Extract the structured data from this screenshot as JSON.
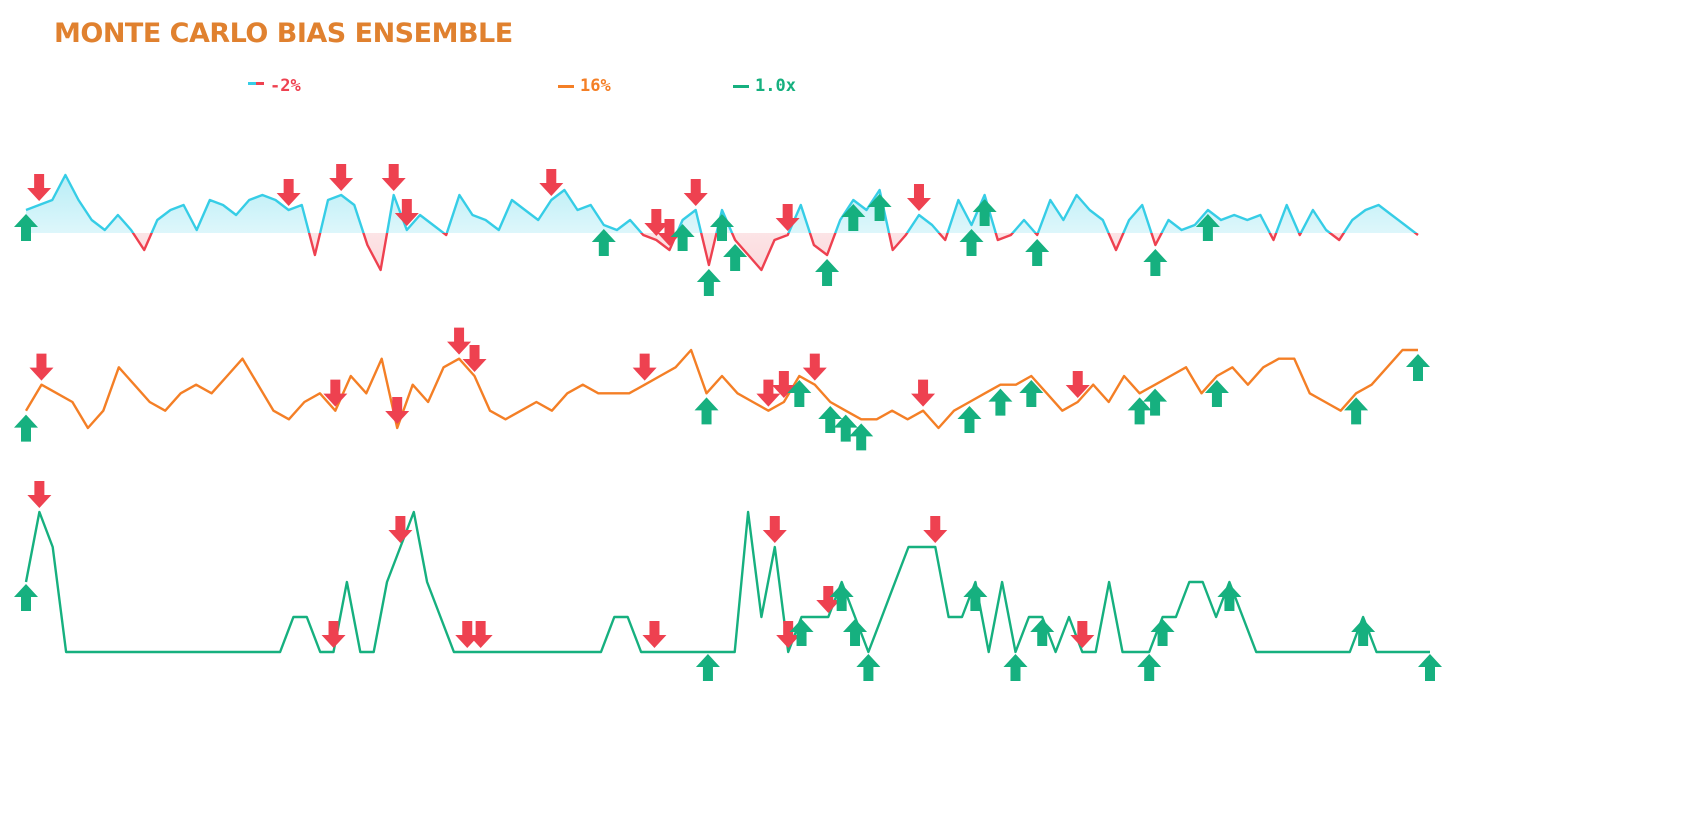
{
  "title": "MONTE CARLO BIAS ENSEMBLE",
  "legend": [
    {
      "label": "-2%",
      "color": "#ee4150",
      "color2": "#36cde6"
    },
    {
      "label": "16%",
      "color": "#f47f26"
    },
    {
      "label": "1.0x",
      "color": "#16b07f"
    }
  ],
  "colors": {
    "pos": "#36cde6",
    "neg": "#ee4150",
    "orange": "#f47f26",
    "green": "#16b07f",
    "red_marker": "#ee4150",
    "green_marker": "#16b07f"
  },
  "chart_data": [
    {
      "type": "line",
      "name": "-2%",
      "baseline": 0,
      "values": [
        2,
        3,
        4,
        9,
        4,
        0,
        -2,
        1,
        -2,
        -6,
        0,
        2,
        3,
        -2,
        4,
        3,
        1,
        4,
        5,
        4,
        2,
        3,
        -7,
        4,
        5,
        3,
        -5,
        -10,
        5,
        -2,
        1,
        -1,
        -3,
        5,
        1,
        0,
        -2,
        4,
        2,
        0,
        4,
        6,
        2,
        3,
        -1,
        -2,
        0,
        -3,
        -4,
        -6,
        0,
        2,
        -9,
        2,
        -4,
        -7,
        -10,
        -4,
        -3,
        3,
        -5,
        -7,
        0,
        4,
        2,
        6,
        -6,
        -3,
        1,
        -1,
        -4,
        4,
        -1,
        5,
        -4,
        -3,
        0,
        -3,
        4,
        0,
        5,
        2,
        0,
        -6,
        0,
        3,
        -5,
        0,
        -2,
        -1,
        2,
        0,
        1,
        0,
        1,
        -4,
        3,
        -3,
        2,
        -2,
        -4,
        0,
        2,
        3,
        1,
        -1,
        -3
      ],
      "down_markers": [
        1,
        20,
        24,
        28,
        29,
        40,
        48,
        49,
        51,
        58,
        68
      ],
      "up_markers": [
        0,
        44,
        50,
        52,
        53,
        54,
        61,
        63,
        65,
        72,
        73,
        77,
        86,
        90
      ]
    },
    {
      "type": "line",
      "name": "16%",
      "values": [
        0,
        3,
        2,
        1,
        -2,
        0,
        5,
        3,
        1,
        0,
        2,
        3,
        2,
        4,
        6,
        3,
        0,
        -1,
        1,
        2,
        0,
        4,
        2,
        6,
        -2,
        3,
        1,
        5,
        6,
        4,
        0,
        -1,
        0,
        1,
        0,
        2,
        3,
        2,
        2,
        2,
        3,
        4,
        5,
        7,
        2,
        4,
        2,
        1,
        0,
        1,
        4,
        3,
        1,
        0,
        -1,
        -1,
        0,
        -1,
        0,
        -2,
        0,
        1,
        2,
        3,
        3,
        4,
        2,
        0,
        1,
        3,
        1,
        4,
        2,
        3,
        4,
        5,
        2,
        4,
        5,
        3,
        5,
        6,
        6,
        2,
        1,
        0,
        2,
        3,
        5,
        7,
        7
      ],
      "down_markers": [
        1,
        20,
        24,
        28,
        29,
        40,
        48,
        49,
        51,
        58,
        68
      ],
      "up_markers": [
        0,
        44,
        50,
        52,
        53,
        54,
        61,
        63,
        65,
        72,
        73,
        77,
        86,
        90
      ]
    },
    {
      "type": "line",
      "name": "1.0x",
      "values": [
        2,
        4,
        3,
        0,
        0,
        0,
        0,
        0,
        0,
        0,
        0,
        0,
        0,
        0,
        0,
        0,
        0,
        0,
        0,
        0,
        1,
        1,
        0,
        0,
        2,
        0,
        0,
        2,
        3,
        4,
        2,
        1,
        0,
        0,
        0,
        0,
        0,
        0,
        0,
        0,
        0,
        0,
        0,
        0,
        1,
        1,
        0,
        0,
        0,
        0,
        0,
        0,
        0,
        0,
        4,
        1,
        3,
        0,
        1,
        1,
        1,
        2,
        1,
        0,
        1,
        2,
        3,
        3,
        3,
        1,
        1,
        2,
        0,
        2,
        0,
        1,
        1,
        0,
        1,
        0,
        0,
        2,
        0,
        0,
        0,
        1,
        1,
        2,
        2,
        1,
        2,
        1,
        0,
        0,
        0,
        0,
        0,
        0,
        0,
        0,
        1,
        0,
        0,
        0,
        0,
        0
      ],
      "down_markers": [],
      "up_markers": []
    }
  ]
}
